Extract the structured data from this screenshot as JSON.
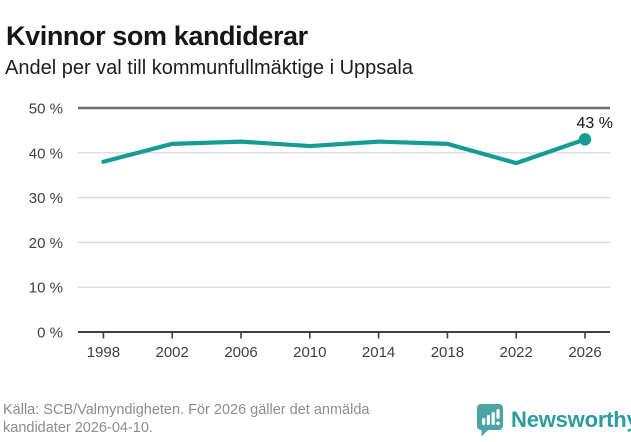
{
  "header": {
    "title": "Kvinnor som kandiderar",
    "subtitle": "Andel per val till kommunfullmäktige i Uppsala"
  },
  "chart_data": {
    "type": "line",
    "title": "Kvinnor som kandiderar",
    "subtitle": "Andel per val till kommunfullmäktige i Uppsala",
    "x": [
      1998,
      2002,
      2006,
      2010,
      2014,
      2018,
      2022,
      2026
    ],
    "values": [
      38,
      42,
      42.5,
      41.5,
      42.5,
      42,
      37.7,
      43
    ],
    "end_label": "43 %",
    "ylim": [
      0,
      50
    ],
    "ytick_step": 10,
    "ytick_suffix": " %",
    "grid": true,
    "legend": "none",
    "line_color": "#159c94",
    "marker": "dot-on-last-point"
  },
  "footer": {
    "source_line1": "Källa: SCB/Valmyndigheten. För 2026 gäller det anmälda",
    "source_line2": "kandidater 2026-04-10.",
    "brand": "Newsworthy",
    "brand_color": "#2d9c9c",
    "brand_icon": "newsworthy-speech-bubble-bar-chart"
  }
}
